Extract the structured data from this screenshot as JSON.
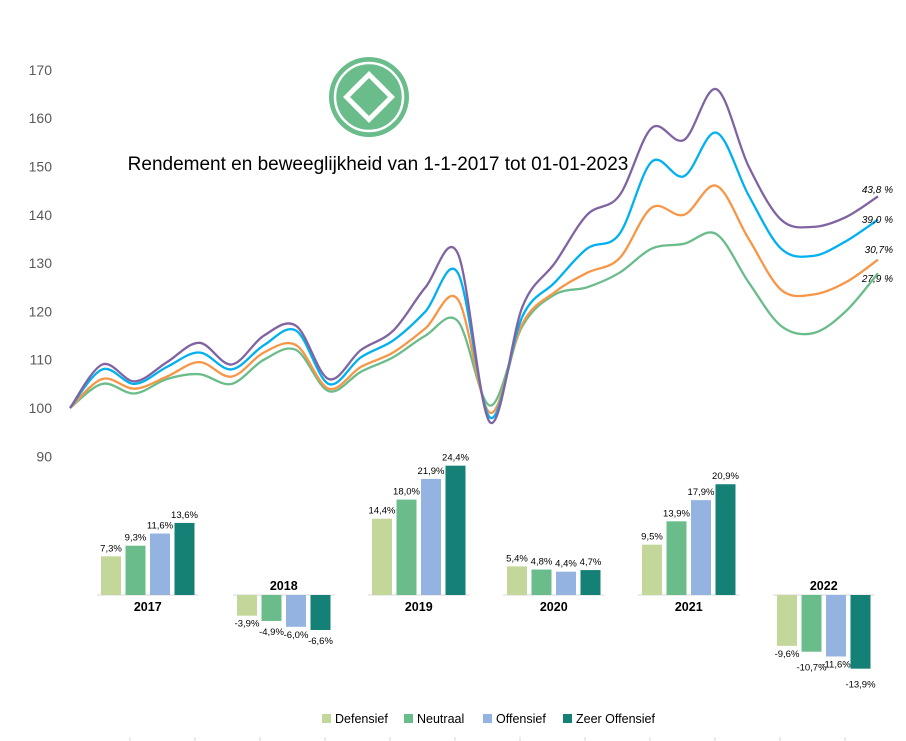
{
  "chart_data": [
    {
      "type": "line",
      "title": "Rendement en beweeglijkheid van 1-1-2017 tot 01-01-2023",
      "ylim": [
        90,
        170
      ],
      "yticks": [
        90,
        100,
        110,
        120,
        130,
        140,
        150,
        160,
        170
      ],
      "grid": false,
      "x": [
        0,
        0.04,
        0.08,
        0.12,
        0.16,
        0.2,
        0.24,
        0.28,
        0.32,
        0.36,
        0.4,
        0.44,
        0.48,
        0.52,
        0.56,
        0.6,
        0.64,
        0.68,
        0.72,
        0.76,
        0.8,
        0.84,
        0.88,
        0.92,
        0.96,
        1.0
      ],
      "series": [
        {
          "color": "#8064A2",
          "end_label": "43,8 %",
          "values": [
            100,
            109,
            105.5,
            109.5,
            113.5,
            109,
            115,
            117,
            106,
            112,
            116,
            125,
            132,
            97,
            121,
            130,
            140,
            144,
            158,
            155.5,
            166,
            150,
            139,
            137.5,
            139.5,
            143.8
          ]
        },
        {
          "color": "#00B0F0",
          "end_label": "39,0 %",
          "values": [
            100,
            108,
            105,
            108.5,
            111.5,
            108,
            113,
            116,
            105,
            110.5,
            114,
            120,
            128,
            98,
            119,
            126,
            133,
            136,
            151,
            148,
            157,
            144,
            133,
            131.5,
            134.5,
            139.0
          ]
        },
        {
          "color": "#F79646",
          "end_label": "30,7%",
          "values": [
            100,
            106,
            104,
            106.5,
            109.5,
            106.5,
            111.5,
            113,
            104,
            108.5,
            111.5,
            116.5,
            122.5,
            99,
            117.5,
            124,
            128,
            131,
            141.5,
            140,
            146,
            135,
            124.5,
            123.5,
            126,
            130.7
          ]
        },
        {
          "color": "#6ABD8B",
          "end_label": "27,9 %",
          "values": [
            100,
            105,
            103,
            106,
            107,
            105,
            110,
            112,
            103.5,
            107.5,
            110.5,
            115,
            118,
            100.5,
            117,
            123.5,
            125,
            128,
            133,
            134,
            136,
            126,
            117,
            115.5,
            120,
            127.9
          ]
        }
      ]
    },
    {
      "type": "bar",
      "categories": [
        "2017",
        "2018",
        "2019",
        "2020",
        "2021",
        "2022"
      ],
      "series": [
        {
          "name": "Defensief",
          "color": "#C4D79B",
          "values": [
            7.3,
            -3.9,
            14.4,
            5.4,
            9.5,
            -9.6
          ],
          "labels": [
            "7,3%",
            "-3,9%",
            "14,4%",
            "5,4%",
            "9,5%",
            "-9,6%"
          ]
        },
        {
          "name": "Neutraal",
          "color": "#6ABD8B",
          "values": [
            9.3,
            -4.9,
            18.0,
            4.8,
            13.9,
            -10.7
          ],
          "labels": [
            "9,3%",
            "-4,9%",
            "18,0%",
            "4,8%",
            "13,9%",
            "-10,7%"
          ]
        },
        {
          "name": "Offensief",
          "color": "#95B3E0",
          "values": [
            11.6,
            -6.0,
            21.9,
            4.4,
            17.9,
            -11.6
          ],
          "labels": [
            "11,6%",
            "-6,0%",
            "21,9%",
            "4,4%",
            "17,9%",
            "-11,6%"
          ]
        },
        {
          "name": "Zeer Offensief",
          "color": "#158076",
          "values": [
            13.6,
            -6.6,
            24.4,
            4.7,
            20.9,
            -13.9
          ],
          "labels": [
            "13,6%",
            "-6,6%",
            "24,4%",
            "4,7%",
            "20,9%",
            "-13,9%"
          ]
        }
      ],
      "legend": "bottom"
    }
  ],
  "logo": {
    "icon": "diamond-logo-icon",
    "color": "#6ABD8B"
  }
}
